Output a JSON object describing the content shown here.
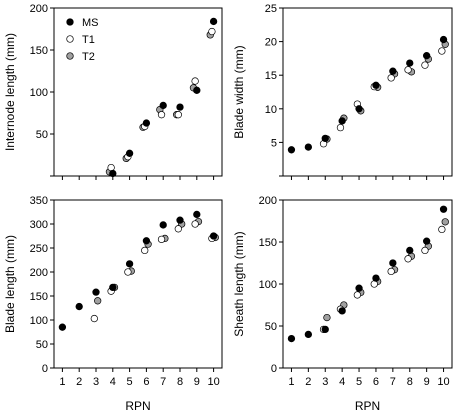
{
  "chart_data": [
    {
      "type": "scatter",
      "xlabel": "",
      "ylabel": "Internode length (mm)",
      "xlim": [
        0.5,
        10.5
      ],
      "ylim": [
        0,
        200
      ],
      "x_ticks": [],
      "y_ticks": [
        0,
        50,
        100,
        150,
        200
      ],
      "y_tick_labels": [
        "",
        "50",
        "100",
        "150",
        "200"
      ],
      "legend": {
        "position": "top-left"
      },
      "series": [
        {
          "name": "MS",
          "marker_fill": "#000000",
          "points": [
            [
              4,
              3
            ],
            [
              5,
              27
            ],
            [
              6,
              63
            ],
            [
              7,
              84
            ],
            [
              8,
              82
            ],
            [
              9,
              102
            ],
            [
              10,
              184
            ]
          ]
        },
        {
          "name": "T1",
          "marker_fill": "#ffffff",
          "points": [
            [
              3.9,
              10
            ],
            [
              4.9,
              23
            ],
            [
              5.9,
              59
            ],
            [
              6.9,
              73
            ],
            [
              7.9,
              73
            ],
            [
              8.9,
              113
            ],
            [
              9.9,
              172
            ]
          ]
        },
        {
          "name": "T2",
          "marker_fill": "#a0a0a0",
          "points": [
            [
              3.8,
              5
            ],
            [
              4.8,
              21
            ],
            [
              5.8,
              58
            ],
            [
              6.8,
              79
            ],
            [
              7.8,
              73
            ],
            [
              8.8,
              105
            ],
            [
              9.8,
              168
            ]
          ]
        }
      ]
    },
    {
      "type": "scatter",
      "xlabel": "",
      "ylabel": "Blade width (mm)",
      "xlim": [
        0.5,
        10.5
      ],
      "ylim": [
        0,
        25
      ],
      "x_ticks": [],
      "y_ticks": [
        0,
        5,
        10,
        15,
        20,
        25
      ],
      "y_tick_labels": [
        "",
        "5",
        "10",
        "15",
        "20",
        "25"
      ],
      "series": [
        {
          "name": "MS",
          "marker_fill": "#000000",
          "points": [
            [
              1,
              3.9
            ],
            [
              2,
              4.3
            ],
            [
              3,
              5.6
            ],
            [
              4,
              8.2
            ],
            [
              5,
              10.0
            ],
            [
              6,
              13.5
            ],
            [
              7,
              15.6
            ],
            [
              8,
              16.8
            ],
            [
              9,
              17.9
            ],
            [
              10,
              20.3
            ]
          ]
        },
        {
          "name": "T1",
          "marker_fill": "#ffffff",
          "points": [
            [
              2.9,
              4.8
            ],
            [
              3.9,
              7.2
            ],
            [
              4.9,
              10.7
            ],
            [
              5.9,
              13.3
            ],
            [
              6.9,
              14.6
            ],
            [
              7.9,
              15.8
            ],
            [
              8.9,
              16.5
            ],
            [
              9.9,
              18.6
            ]
          ]
        },
        {
          "name": "T2",
          "marker_fill": "#a0a0a0",
          "points": [
            [
              3.1,
              5.5
            ],
            [
              4.1,
              8.6
            ],
            [
              5.1,
              9.7
            ],
            [
              6.1,
              13.2
            ],
            [
              7.1,
              15.2
            ],
            [
              8.1,
              15.5
            ],
            [
              9.1,
              17.4
            ],
            [
              10.1,
              19.6
            ]
          ]
        }
      ]
    },
    {
      "type": "scatter",
      "xlabel": "RPN",
      "ylabel": "Blade length (mm)",
      "xlim": [
        0.5,
        10.5
      ],
      "ylim": [
        0,
        350
      ],
      "x_ticks": [
        1,
        2,
        3,
        4,
        5,
        6,
        7,
        8,
        9,
        10
      ],
      "x_tick_labels": [
        "1",
        "2",
        "3",
        "4",
        "5",
        "6",
        "7",
        "8",
        "9",
        "10"
      ],
      "y_ticks": [
        0,
        50,
        100,
        150,
        200,
        250,
        300,
        350
      ],
      "y_tick_labels": [
        "0",
        "50",
        "100",
        "150",
        "200",
        "250",
        "300",
        "350"
      ],
      "series": [
        {
          "name": "MS",
          "marker_fill": "#000000",
          "points": [
            [
              1,
              85
            ],
            [
              2,
              128
            ],
            [
              3,
              158
            ],
            [
              4,
              168
            ],
            [
              5,
              217
            ],
            [
              6,
              265
            ],
            [
              7,
              298
            ],
            [
              8,
              308
            ],
            [
              9,
              320
            ],
            [
              10,
              275
            ]
          ]
        },
        {
          "name": "T1",
          "marker_fill": "#ffffff",
          "points": [
            [
              2.9,
              103
            ],
            [
              3.9,
              160
            ],
            [
              4.9,
              200
            ],
            [
              5.9,
              245
            ],
            [
              6.9,
              268
            ],
            [
              7.9,
              290
            ],
            [
              8.9,
              300
            ],
            [
              9.9,
              270
            ]
          ]
        },
        {
          "name": "T2",
          "marker_fill": "#a0a0a0",
          "points": [
            [
              3.1,
              140
            ],
            [
              4.1,
              168
            ],
            [
              5.1,
              202
            ],
            [
              6.1,
              258
            ],
            [
              7.1,
              270
            ],
            [
              8.1,
              300
            ],
            [
              9.1,
              305
            ],
            [
              10.1,
              272
            ]
          ]
        }
      ]
    },
    {
      "type": "scatter",
      "xlabel": "RPN",
      "ylabel": "Sheath length (mm)",
      "xlim": [
        0.5,
        10.5
      ],
      "ylim": [
        0,
        200
      ],
      "x_ticks": [
        1,
        2,
        3,
        4,
        5,
        6,
        7,
        8,
        9,
        10
      ],
      "x_tick_labels": [
        "1",
        "2",
        "3",
        "4",
        "5",
        "6",
        "7",
        "8",
        "9",
        "10"
      ],
      "y_ticks": [
        0,
        50,
        100,
        150,
        200
      ],
      "y_tick_labels": [
        "0",
        "50",
        "100",
        "150",
        "200"
      ],
      "series": [
        {
          "name": "MS",
          "marker_fill": "#000000",
          "points": [
            [
              1,
              35
            ],
            [
              2,
              40
            ],
            [
              3,
              46
            ],
            [
              4,
              68
            ],
            [
              5,
              95
            ],
            [
              6,
              107
            ],
            [
              7,
              125
            ],
            [
              8,
              140
            ],
            [
              9,
              151
            ],
            [
              10,
              189
            ]
          ]
        },
        {
          "name": "T1",
          "marker_fill": "#ffffff",
          "points": [
            [
              2.9,
              46
            ],
            [
              3.9,
              70
            ],
            [
              4.9,
              87
            ],
            [
              5.9,
              100
            ],
            [
              6.9,
              115
            ],
            [
              7.9,
              130
            ],
            [
              8.9,
              140
            ],
            [
              9.9,
              165
            ]
          ]
        },
        {
          "name": "T2",
          "marker_fill": "#a0a0a0",
          "points": [
            [
              3.1,
              60
            ],
            [
              4.1,
              75
            ],
            [
              5.1,
              90
            ],
            [
              6.1,
              103
            ],
            [
              7.1,
              117
            ],
            [
              8.1,
              133
            ],
            [
              9.1,
              145
            ],
            [
              10.1,
              174
            ]
          ]
        }
      ]
    }
  ]
}
